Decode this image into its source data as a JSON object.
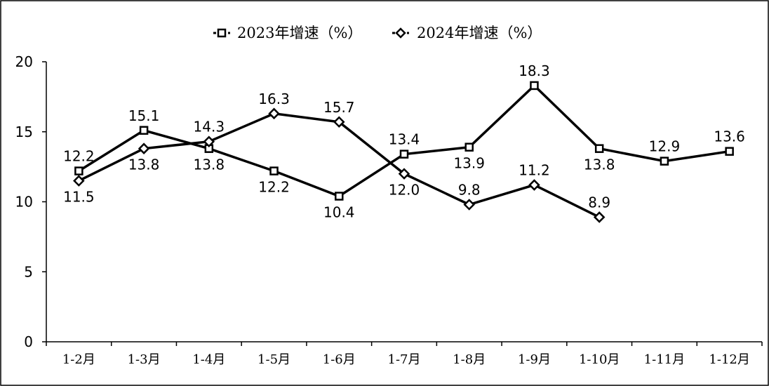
{
  "chart_data": {
    "type": "line",
    "categories": [
      "1-2月",
      "1-3月",
      "1-4月",
      "1-5月",
      "1-6月",
      "1-7月",
      "1-8月",
      "1-9月",
      "1-10月",
      "1-11月",
      "1-12月"
    ],
    "series": [
      {
        "name": "2023年增速（%）",
        "marker": "square",
        "values": [
          12.2,
          15.1,
          13.8,
          12.2,
          10.4,
          13.4,
          13.9,
          18.3,
          13.8,
          12.9,
          13.6
        ],
        "labels": [
          "12.2",
          "15.1",
          "13.8",
          "12.2",
          "10.4",
          "13.4",
          "13.9",
          "18.3",
          "13.8",
          "12.9",
          "13.6"
        ]
      },
      {
        "name": "2024年增速（%）",
        "marker": "diamond",
        "values": [
          11.5,
          13.8,
          14.3,
          16.3,
          15.7,
          12.0,
          9.8,
          11.2,
          8.9,
          null,
          null
        ],
        "labels": [
          "11.5",
          "13.8",
          "14.3",
          "16.3",
          "15.7",
          "12.0",
          "9.8",
          "11.2",
          "8.9",
          null,
          null
        ]
      }
    ],
    "title": "",
    "xlabel": "",
    "ylabel": "",
    "ylim": [
      0,
      20
    ],
    "yticks": [
      0,
      5,
      10,
      15,
      20
    ],
    "grid": false,
    "legend_position": "top-center",
    "line_color": "#000000"
  }
}
